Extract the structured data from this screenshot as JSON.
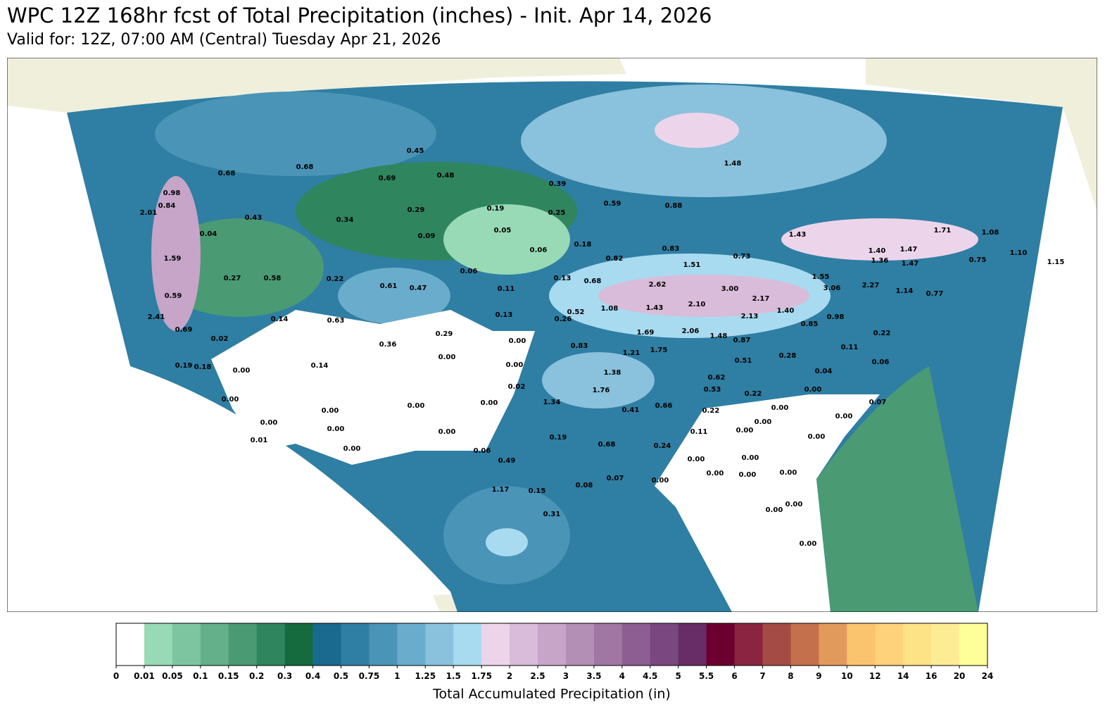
{
  "title": "WPC 12Z 168hr fcst of Total Precipitation (inches) - Init. Apr 14, 2026",
  "subtitle": "Valid for: 12Z, 07:00 AM (Central) Tuesday Apr 21, 2026",
  "colorbar": {
    "label": "Total Accumulated Precipitation (in)",
    "levels": [
      0,
      0.01,
      0.05,
      0.1,
      0.15,
      0.2,
      0.3,
      0.4,
      0.5,
      0.75,
      1,
      1.25,
      1.5,
      1.75,
      2,
      2.5,
      3,
      3.5,
      4,
      4.5,
      5,
      5.5,
      6,
      7,
      8,
      9,
      10,
      12,
      14,
      16,
      20,
      24
    ],
    "colors": [
      "#ffffff",
      "#98d9b6",
      "#7cc5a0",
      "#63b08a",
      "#4a9a74",
      "#2f855e",
      "#156a3e",
      "#1a6a8f",
      "#2f7ea3",
      "#4a94b8",
      "#6aaccc",
      "#8ac1dc",
      "#a8daf0",
      "#ecd5ea",
      "#d9bcd9",
      "#c6a5c8",
      "#b38fb6",
      "#a076a3",
      "#8c5e92",
      "#7a4780",
      "#682d67",
      "#6b0030",
      "#8a2440",
      "#a54b45",
      "#c4704d",
      "#e29a5c",
      "#f9c46d",
      "#fdd27a",
      "#fee286",
      "#feec95",
      "#ffff99"
    ]
  },
  "point_labels": [
    "0.68",
    "0.68",
    "0.45",
    "0.69",
    "0.48",
    "0.39",
    "0.98",
    "0.84",
    "2.01",
    "0.43",
    "0.34",
    "0.29",
    "0.19",
    "0.25",
    "0.59",
    "0.88",
    "0.04",
    "0.09",
    "0.05",
    "0.06",
    "0.18",
    "1.59",
    "0.27",
    "0.58",
    "0.22",
    "0.61",
    "0.47",
    "0.06",
    "0.11",
    "0.13",
    "0.68",
    "0.82",
    "0.83",
    "1.51",
    "0.73",
    "1.48",
    "1.43",
    "1.40",
    "1.47",
    "1.71",
    "1.08",
    "1.10",
    "0.75",
    "1.15",
    "1.36",
    "1.47",
    "1.55",
    "3.06",
    "2.27",
    "1.14",
    "0.77",
    "2.62",
    "3.00",
    "2.10",
    "2.17",
    "1.40",
    "1.08",
    "1.43",
    "0.52",
    "0.13",
    "0.26",
    "0.59",
    "2.41",
    "0.69",
    "0.14",
    "0.63",
    "0.29",
    "0.36",
    "0.00",
    "1.69",
    "2.06",
    "2.13",
    "0.85",
    "0.98",
    "1.48",
    "0.87",
    "0.83",
    "1.21",
    "1.75",
    "0.02",
    "0.19",
    "0.18",
    "0.00",
    "0.14",
    "0.00",
    "0.00",
    "0.51",
    "0.28",
    "0.11",
    "0.06",
    "0.22",
    "0.04",
    "1.38",
    "0.62",
    "0.53",
    "0.02",
    "1.76",
    "0.00",
    "0.00",
    "0.00",
    "0.00",
    "1.34",
    "0.22",
    "0.00",
    "0.41",
    "0.66",
    "0.22",
    "0.00",
    "0.07",
    "0.00",
    "0.00",
    "0.00",
    "0.00",
    "0.00",
    "0.01",
    "0.19",
    "0.11",
    "0.00",
    "0.00",
    "0.00",
    "0.06",
    "0.68",
    "0.24",
    "0.49",
    "0.00",
    "0.00",
    "0.00",
    "0.00",
    "0.00",
    "0.07",
    "0.00",
    "1.17",
    "0.15",
    "0.08",
    "0.00",
    "0.00",
    "0.31",
    "0.00"
  ]
}
